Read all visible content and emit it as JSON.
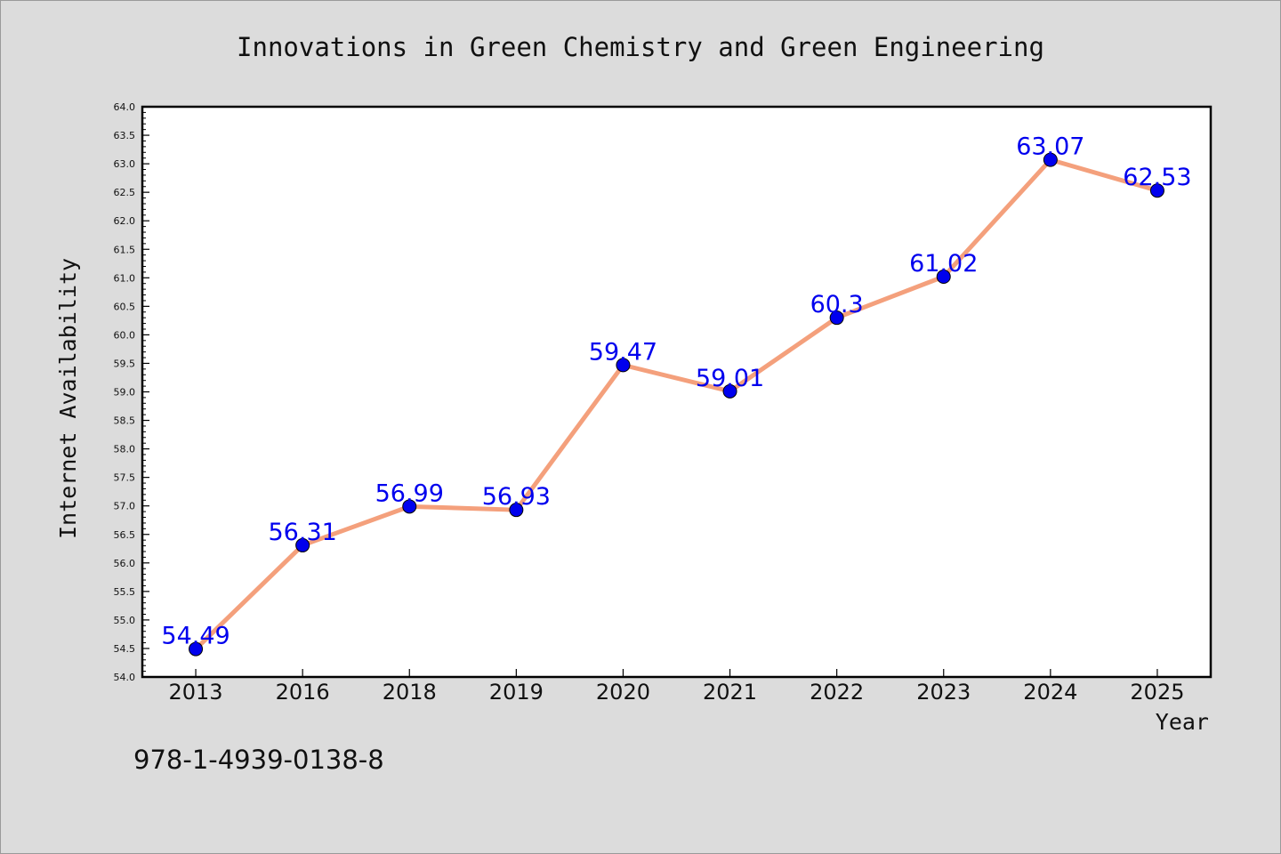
{
  "chart_data": {
    "type": "line",
    "title": "Innovations in Green Chemistry and Green Engineering",
    "xlabel": "Year",
    "ylabel": "Internet Availability",
    "categories": [
      "2013",
      "2016",
      "2018",
      "2019",
      "2020",
      "2021",
      "2022",
      "2023",
      "2024",
      "2025"
    ],
    "series": [
      {
        "values": [
          54.49,
          56.31,
          56.99,
          56.93,
          59.47,
          59.01,
          60.3,
          61.02,
          63.07,
          62.53
        ],
        "data_labels": [
          "54.49",
          "56.31",
          "56.99",
          "56.93",
          "59.47",
          "59.01",
          "60.3",
          "61.02",
          "63.07",
          "62.53"
        ],
        "line_color": "#f4a07c",
        "marker_color": "#0000ee"
      }
    ],
    "ylim": [
      54.0,
      64.0
    ],
    "y_ticks": [
      "54.0",
      "54.5",
      "55.0",
      "55.5",
      "56.0",
      "56.5",
      "57.0",
      "57.5",
      "58.0",
      "58.5",
      "59.0",
      "59.5",
      "60.0",
      "60.5",
      "61.0",
      "61.5",
      "62.0",
      "62.5",
      "63.0",
      "63.5",
      "64.0"
    ],
    "grid": false,
    "legend": "none"
  },
  "footnote": "978-1-4939-0138-8"
}
